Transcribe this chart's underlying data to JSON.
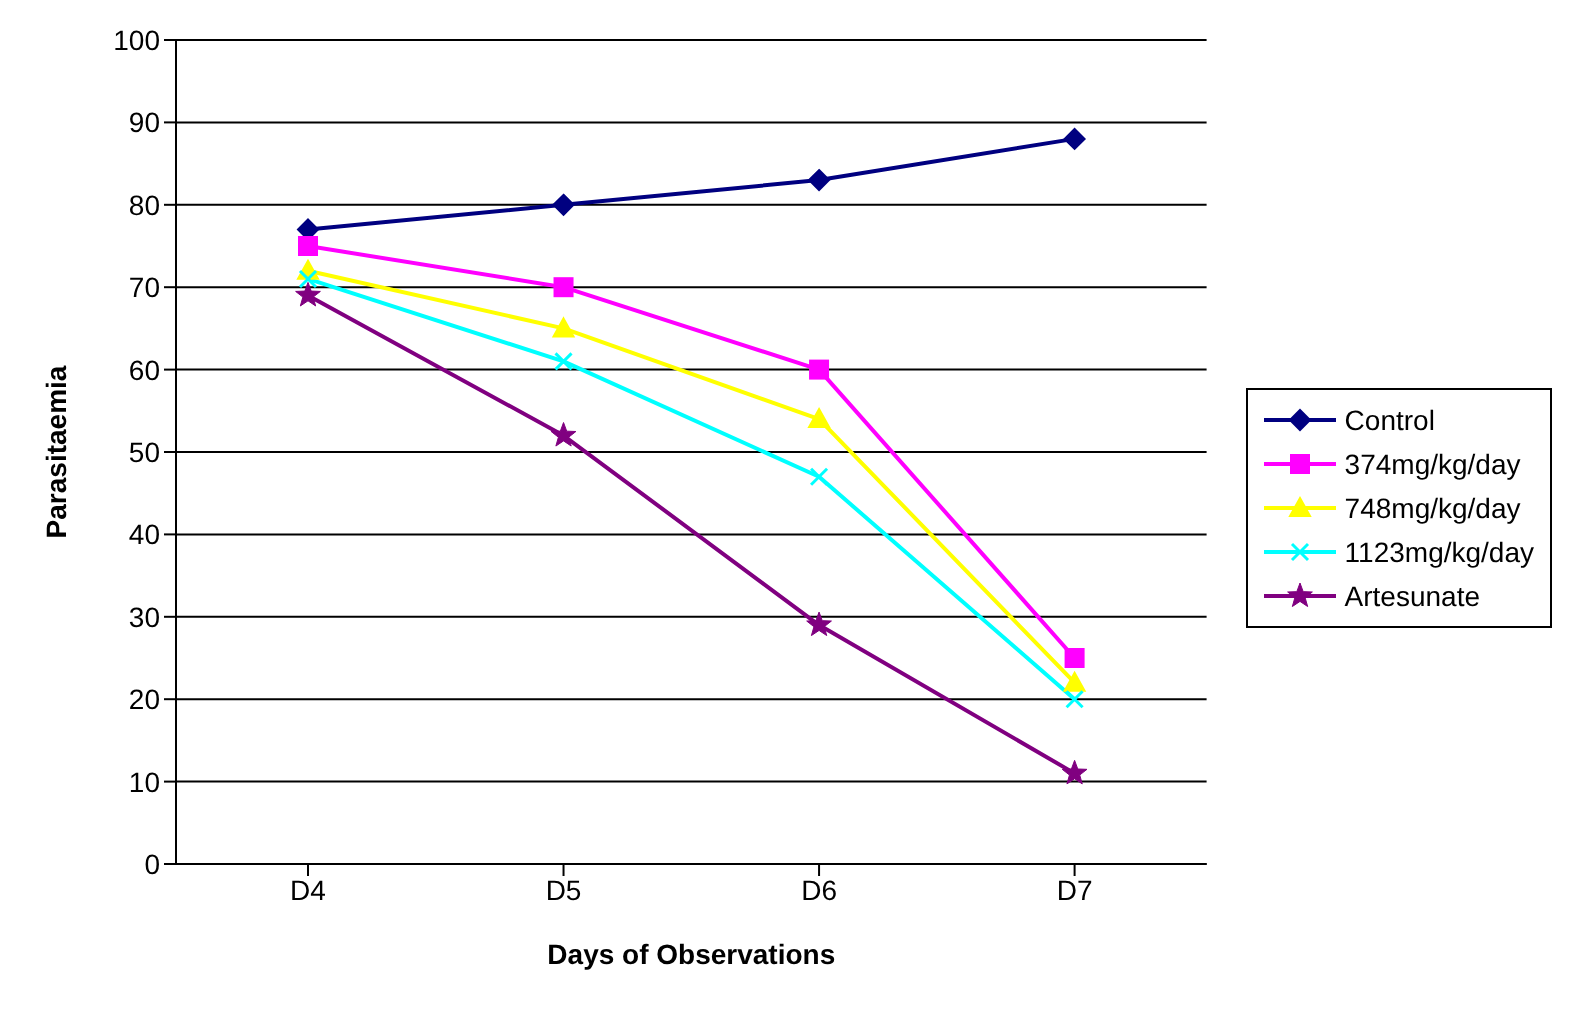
{
  "chart_data": {
    "type": "line",
    "xlabel": "Days of Observations",
    "ylabel": "Parasitaemia",
    "categories": [
      "D4",
      "D5",
      "D6",
      "D7"
    ],
    "series": [
      {
        "name": "Control",
        "color": "#000080",
        "marker": "diamond",
        "values": [
          77,
          80,
          83,
          88
        ]
      },
      {
        "name": "374mg/kg/day",
        "color": "#ff00ff",
        "marker": "square",
        "values": [
          75,
          70,
          60,
          25
        ]
      },
      {
        "name": "748mg/kg/day",
        "color": "#ffff00",
        "marker": "triangle",
        "values": [
          72,
          65,
          54,
          22
        ]
      },
      {
        "name": "1123mg/kg/day",
        "color": "#00ffff",
        "marker": "cross",
        "values": [
          71,
          61,
          47,
          20
        ]
      },
      {
        "name": "Artesunate",
        "color": "#800080",
        "marker": "star",
        "values": [
          69,
          52,
          29,
          11
        ]
      }
    ],
    "ylim": [
      0,
      100
    ],
    "yticks": [
      0,
      10,
      20,
      30,
      40,
      50,
      60,
      70,
      80,
      90,
      100
    ],
    "grid": "y",
    "legend": "right"
  }
}
